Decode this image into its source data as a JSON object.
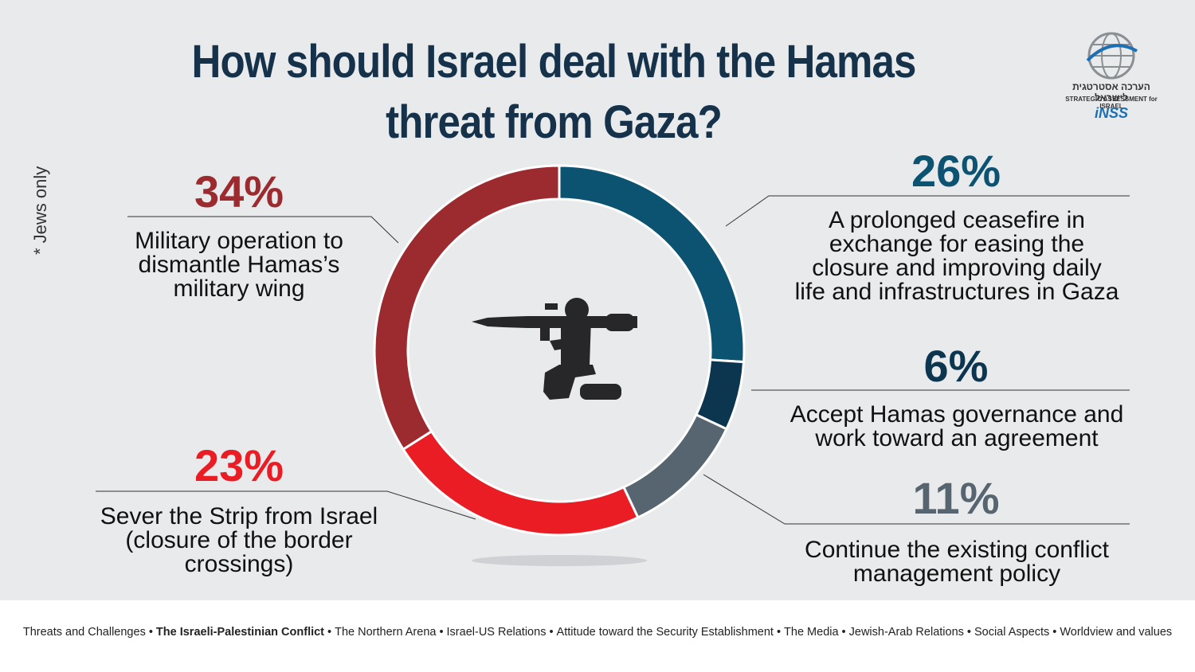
{
  "title": "How should Israel deal with the Hamas threat from Gaza?",
  "side_note": "* Jews only",
  "logo": {
    "hebrew": "הערכה אסטרטגית לישראל",
    "english": "STRATEGIC ASSESSMENT for ISRAEL",
    "brand": "iNSS"
  },
  "colors": {
    "ceasefire": "#0c5372",
    "accept": "#0c364f",
    "continue": "#56656f",
    "sever": "#ea1c24",
    "military": "#9c2b30",
    "title": "#15324a"
  },
  "chart_data": {
    "type": "pie",
    "donut": true,
    "start_angle_deg": 0,
    "direction": "clockwise",
    "slices": [
      {
        "key": "ceasefire",
        "value": 26,
        "label": "26%",
        "description": "A prolonged ceasefire in exchange for easing the closure and improving daily life and infrastructures in Gaza"
      },
      {
        "key": "accept",
        "value": 6,
        "label": "6%",
        "description": "Accept Hamas governance and work toward an agreement"
      },
      {
        "key": "continue",
        "value": 11,
        "label": "11%",
        "description": "Continue the existing conflict management policy"
      },
      {
        "key": "sever",
        "value": 23,
        "label": "23%",
        "description": "Sever the Strip from Israel (closure of the border crossings)"
      },
      {
        "key": "military",
        "value": 34,
        "label": "34%",
        "description": "Military operation to dismantle Hamas’s military wing"
      }
    ]
  },
  "labels": {
    "military": {
      "pct": "34%",
      "lines": [
        "Military operation to",
        "dismantle Hamas’s",
        "military wing"
      ]
    },
    "sever": {
      "pct": "23%",
      "lines": [
        "Sever the Strip from Israel",
        "(closure of the border",
        "crossings)"
      ]
    },
    "ceasefire": {
      "pct": "26%",
      "lines": [
        "A prolonged ceasefire in",
        "exchange for easing the",
        "closure and improving daily",
        "life and infrastructures in Gaza"
      ]
    },
    "accept": {
      "pct": "6%",
      "lines": [
        "Accept Hamas governance and",
        "work toward an agreement"
      ]
    },
    "continue": {
      "pct": "11%",
      "lines": [
        "Continue the existing conflict",
        "management policy"
      ]
    }
  },
  "footer": {
    "items": [
      {
        "text": "Threats and Challenges",
        "active": false
      },
      {
        "text": "The Israeli-Palestinian Conflict",
        "active": true
      },
      {
        "text": "The Northern  Arena",
        "active": false
      },
      {
        "text": "Israel-US Relations",
        "active": false
      },
      {
        "text": "Attitude toward the Security Establishment",
        "active": false
      },
      {
        "text": "The Media",
        "active": false
      },
      {
        "text": "Jewish-Arab Relations",
        "active": false
      },
      {
        "text": "Social Aspects",
        "active": false
      },
      {
        "text": "Worldview and values",
        "active": false
      }
    ],
    "separator": "•"
  }
}
